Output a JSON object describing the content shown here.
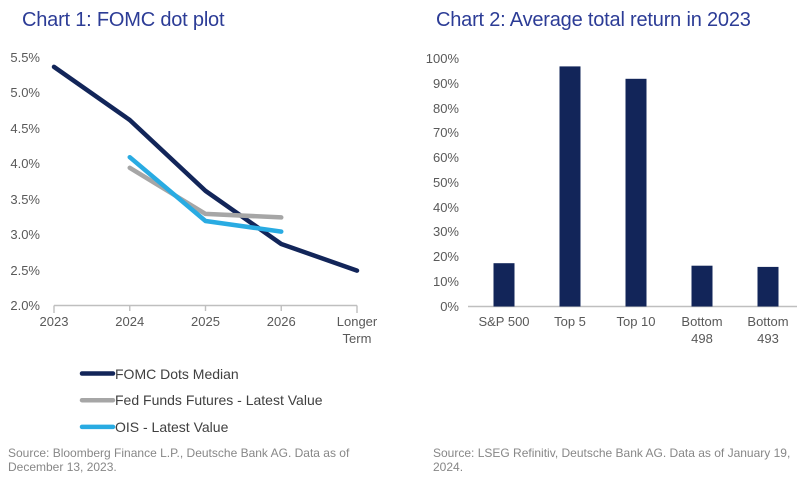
{
  "page": {
    "background": "#ffffff"
  },
  "colors": {
    "title_blue": "#2c3c96",
    "navy": "#122559",
    "series_gray": "#a6a6a6",
    "series_cyan": "#29abe2",
    "axis_line": "#bfbfbf",
    "tick_text": "#595959",
    "legend_text": "#404040",
    "source_text": "#878787"
  },
  "chart_data": [
    {
      "id": "chart1",
      "type": "line",
      "title": "Chart 1: FOMC dot plot",
      "x_categories": [
        "2023",
        "2024",
        "2025",
        "2026",
        "Longer Term"
      ],
      "y_ticks": [
        "5.5%",
        "5.0%",
        "4.5%",
        "4.0%",
        "3.5%",
        "3.0%",
        "2.5%",
        "2.0%"
      ],
      "ylim": [
        2.0,
        5.5
      ],
      "y_unit": "%",
      "grid": false,
      "legend_position": "bottom-left",
      "series": [
        {
          "name": "FOMC Dots Median",
          "color": "#122559",
          "x_indices": [
            0,
            1,
            2,
            3,
            4
          ],
          "values": [
            5.375,
            4.625,
            3.625,
            2.875,
            2.5
          ]
        },
        {
          "name": "Fed Funds Futures - Latest Value",
          "color": "#a6a6a6",
          "x_indices": [
            1,
            2,
            3
          ],
          "values": [
            3.95,
            3.3,
            3.25
          ]
        },
        {
          "name": "OIS - Latest Value",
          "color": "#29abe2",
          "x_indices": [
            1,
            2,
            3
          ],
          "values": [
            4.1,
            3.2,
            3.05
          ]
        }
      ],
      "source": "Source: Bloomberg Finance L.P., Deutsche Bank AG. Data as of December 13, 2023."
    },
    {
      "id": "chart2",
      "type": "bar",
      "title": "Chart 2: Average total return in 2023",
      "categories": [
        "S&P 500",
        "Top 5",
        "Top 10",
        "Bottom 498",
        "Bottom 493"
      ],
      "values": [
        17.5,
        97,
        92,
        16.5,
        16
      ],
      "y_ticks": [
        "100%",
        "90%",
        "80%",
        "70%",
        "60%",
        "50%",
        "40%",
        "30%",
        "20%",
        "10%",
        "0%"
      ],
      "ylim": [
        0,
        100
      ],
      "grid": false,
      "bar_color": "#122559",
      "source": "Source: LSEG Refinitiv, Deutsche Bank AG. Data as of January 19, 2024."
    }
  ]
}
